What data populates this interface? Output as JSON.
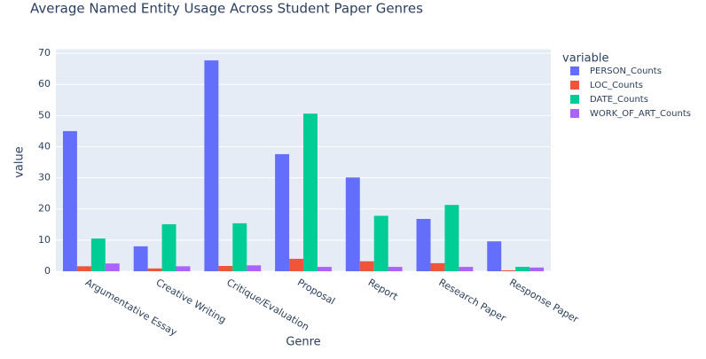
{
  "chart_data": {
    "type": "bar",
    "title": "Average Named Entity Usage Across Student Paper Genres",
    "x_label": "Genre",
    "y_label": "value",
    "legend_title": "variable",
    "categories": [
      "Argumentative Essay",
      "Creative Writing",
      "Critique/Evaluation",
      "Proposal",
      "Report",
      "Research Paper",
      "Response Paper"
    ],
    "series": [
      {
        "name": "PERSON_Counts",
        "color": "#636efa",
        "values": [
          45.0,
          8.0,
          67.7,
          37.6,
          30.1,
          16.8,
          9.6
        ]
      },
      {
        "name": "LOC_Counts",
        "color": "#ef553b",
        "values": [
          1.6,
          0.9,
          1.7,
          4.0,
          3.2,
          2.6,
          0.3
        ]
      },
      {
        "name": "DATE_Counts",
        "color": "#00cc96",
        "values": [
          10.5,
          15.1,
          15.4,
          50.6,
          17.8,
          21.3,
          1.4
        ]
      },
      {
        "name": "WORK_OF_ART_Counts",
        "color": "#ab63fa",
        "values": [
          2.5,
          1.6,
          1.9,
          1.4,
          1.4,
          1.4,
          1.2
        ]
      }
    ],
    "ylim": [
      0,
      71.3
    ],
    "yticks": [
      0,
      10,
      20,
      30,
      40,
      50,
      60,
      70
    ],
    "grid": true,
    "legend_position": "right"
  }
}
